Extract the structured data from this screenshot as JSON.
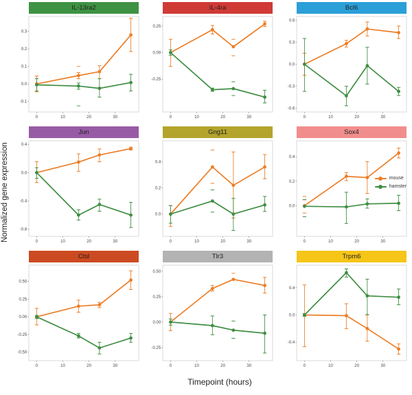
{
  "figure": {
    "ylabel": "Normalized gene expression",
    "xlabel": "Timepoint (hours)"
  },
  "legend": {
    "entries": [
      {
        "label": "mouse",
        "color": "#EC7E27"
      },
      {
        "label": "hamster",
        "color": "#3F8E43"
      }
    ]
  },
  "chart_data": {
    "type": "line",
    "x": [
      0,
      16,
      24,
      36
    ],
    "xticks": [
      0,
      10,
      20,
      30
    ],
    "xlim": [
      -3,
      39
    ],
    "error_bars": true,
    "panels": [
      {
        "title": "IL-13ra2",
        "strip_color": "#3E9243",
        "ylim": [
          -0.16,
          0.385
        ],
        "yticks": [
          {
            "v": 0.3,
            "t": "0.3"
          },
          {
            "v": 0.2,
            "t": "0.2"
          },
          {
            "v": 0.1,
            "t": "0.1"
          },
          {
            "v": 0.0,
            "t": "0.0"
          },
          {
            "v": -0.1,
            "t": "-0.1"
          }
        ],
        "series": [
          {
            "name": "mouse",
            "color": "#EC7E27",
            "points": [
              {
                "x": 0,
                "y": 0.0,
                "lo": -0.045,
                "hi": 0.045
              },
              {
                "x": 16,
                "y": 0.048,
                "lo": 0.03,
                "hi": 0.065
              },
              {
                "x": 24,
                "y": 0.07,
                "lo": 0.03,
                "hi": 0.105
              },
              {
                "x": 36,
                "y": 0.28,
                "lo": 0.185,
                "hi": 0.375
              }
            ],
            "dashes": [
              {
                "x": 16,
                "y": 0.1
              }
            ]
          },
          {
            "name": "hamster",
            "color": "#3F8E43",
            "points": [
              {
                "x": 0,
                "y": -0.005,
                "lo": -0.04,
                "hi": 0.03
              },
              {
                "x": 16,
                "y": -0.012,
                "lo": -0.03,
                "hi": 0.005
              },
              {
                "x": 24,
                "y": -0.025,
                "lo": -0.075,
                "hi": 0.03
              },
              {
                "x": 36,
                "y": 0.008,
                "lo": -0.04,
                "hi": 0.055
              }
            ],
            "dashes": [
              {
                "x": 16,
                "y": -0.125
              }
            ]
          }
        ]
      },
      {
        "title": "IL-4ra",
        "strip_color": "#D03A35",
        "ylim": [
          -0.56,
          0.34
        ],
        "yticks": [
          {
            "v": 0.25,
            "t": "0.25"
          },
          {
            "v": 0.0,
            "t": "0.00"
          },
          {
            "v": -0.25,
            "t": "-0.25"
          }
        ],
        "series": [
          {
            "name": "mouse",
            "color": "#EC7E27",
            "points": [
              {
                "x": 0,
                "y": 0.0,
                "lo": -0.13,
                "hi": 0.125
              },
              {
                "x": 16,
                "y": 0.215,
                "lo": 0.175,
                "hi": 0.255
              },
              {
                "x": 24,
                "y": 0.055,
                "lo": -0.03,
                "hi": 0.125,
                "s": "c"
              },
              {
                "x": 36,
                "y": 0.27,
                "lo": 0.245,
                "hi": 0.295
              }
            ],
            "dashes": []
          },
          {
            "name": "hamster",
            "color": "#3F8E43",
            "points": [
              {
                "x": 0,
                "y": 0.0,
                "lo": -0.025,
                "hi": 0.025
              },
              {
                "x": 16,
                "y": -0.35,
                "lo": -0.365,
                "hi": -0.335
              },
              {
                "x": 24,
                "y": -0.34,
                "lo": -0.405,
                "hi": -0.275,
                "s": "c"
              },
              {
                "x": 36,
                "y": -0.42,
                "lo": -0.475,
                "hi": -0.355
              }
            ],
            "dashes": []
          }
        ]
      },
      {
        "title": "Bcl6",
        "strip_color": "#2B9FD8",
        "ylim": [
          -0.65,
          0.65
        ],
        "yticks": [
          {
            "v": 0.6,
            "t": "0.6"
          },
          {
            "v": 0.3,
            "t": "0.3"
          },
          {
            "v": 0.0,
            "t": "0.0"
          },
          {
            "v": -0.3,
            "t": "-0.3"
          },
          {
            "v": -0.6,
            "t": "-0.6"
          }
        ],
        "series": [
          {
            "name": "mouse",
            "color": "#EC7E27",
            "points": [
              {
                "x": 0,
                "y": 0.0,
                "lo": -0.15,
                "hi": 0.15
              },
              {
                "x": 16,
                "y": 0.28,
                "lo": 0.235,
                "hi": 0.325
              },
              {
                "x": 24,
                "y": 0.48,
                "lo": 0.385,
                "hi": 0.575
              },
              {
                "x": 36,
                "y": 0.43,
                "lo": 0.35,
                "hi": 0.52
              }
            ],
            "dashes": []
          },
          {
            "name": "hamster",
            "color": "#3F8E43",
            "points": [
              {
                "x": 0,
                "y": 0.0,
                "lo": -0.37,
                "hi": 0.35
              },
              {
                "x": 16,
                "y": -0.43,
                "lo": -0.565,
                "hi": -0.3
              },
              {
                "x": 24,
                "y": -0.02,
                "lo": -0.27,
                "hi": 0.23
              },
              {
                "x": 36,
                "y": -0.37,
                "lo": -0.425,
                "hi": -0.315
              }
            ],
            "dashes": []
          }
        ]
      },
      {
        "title": "Jun",
        "strip_color": "#975BA5",
        "ylim": [
          -0.9,
          0.45
        ],
        "yticks": [
          {
            "v": 0.4,
            "t": "0.4"
          },
          {
            "v": 0.0,
            "t": "0.0"
          },
          {
            "v": -0.4,
            "t": "-0.4"
          },
          {
            "v": -0.8,
            "t": "-0.8"
          }
        ],
        "series": [
          {
            "name": "mouse",
            "color": "#EC7E27",
            "points": [
              {
                "x": 0,
                "y": 0.0,
                "lo": -0.14,
                "hi": 0.155
              },
              {
                "x": 16,
                "y": 0.15,
                "lo": 0.02,
                "hi": 0.265
              },
              {
                "x": 24,
                "y": 0.25,
                "lo": 0.155,
                "hi": 0.335
              },
              {
                "x": 36,
                "y": 0.34,
                "lo": 0.32,
                "hi": 0.36
              }
            ],
            "dashes": []
          },
          {
            "name": "hamster",
            "color": "#3F8E43",
            "points": [
              {
                "x": 0,
                "y": 0.0,
                "lo": -0.08,
                "hi": 0.07
              },
              {
                "x": 16,
                "y": -0.6,
                "lo": -0.67,
                "hi": -0.525
              },
              {
                "x": 24,
                "y": -0.45,
                "lo": -0.545,
                "hi": -0.375
              },
              {
                "x": 36,
                "y": -0.6,
                "lo": -0.775,
                "hi": -0.42
              }
            ],
            "dashes": []
          }
        ]
      },
      {
        "title": "Gng11",
        "strip_color": "#B3A42C",
        "ylim": [
          -0.17,
          0.56
        ],
        "yticks": [
          {
            "v": 0.4,
            "t": "0.4"
          },
          {
            "v": 0.2,
            "t": "0.2"
          },
          {
            "v": 0.0,
            "t": "0.0"
          }
        ],
        "series": [
          {
            "name": "mouse",
            "color": "#EC7E27",
            "points": [
              {
                "x": 0,
                "y": 0.0,
                "lo": -0.095,
                "hi": 0.065
              },
              {
                "x": 16,
                "y": 0.36,
                "lo": 0.235,
                "hi": 0.49,
                "s": "c"
              },
              {
                "x": 24,
                "y": 0.22,
                "lo": -0.03,
                "hi": 0.475
              },
              {
                "x": 36,
                "y": 0.36,
                "lo": 0.27,
                "hi": 0.455
              }
            ],
            "dashes": []
          },
          {
            "name": "hamster",
            "color": "#3F8E43",
            "points": [
              {
                "x": 0,
                "y": 0.0,
                "lo": -0.07,
                "hi": 0.065
              },
              {
                "x": 16,
                "y": 0.1,
                "lo": 0.015,
                "hi": 0.185,
                "s": "c"
              },
              {
                "x": 24,
                "y": 0.0,
                "lo": -0.125,
                "hi": 0.12
              },
              {
                "x": 36,
                "y": 0.07,
                "lo": 0.02,
                "hi": 0.135
              }
            ],
            "dashes": []
          }
        ]
      },
      {
        "title": "Sox4",
        "strip_color": "#F28D8D",
        "ylim": [
          -0.25,
          0.53
        ],
        "yticks": [
          {
            "v": 0.4,
            "t": "0.4"
          },
          {
            "v": 0.2,
            "t": "0.2"
          },
          {
            "v": 0.0,
            "t": "0.0"
          }
        ],
        "series": [
          {
            "name": "mouse",
            "color": "#EC7E27",
            "points": [
              {
                "x": 0,
                "y": 0.0,
                "lo": -0.06,
                "hi": 0.075,
                "s": "c"
              },
              {
                "x": 16,
                "y": 0.24,
                "lo": 0.205,
                "hi": 0.27
              },
              {
                "x": 24,
                "y": 0.23,
                "lo": 0.1,
                "hi": 0.36
              },
              {
                "x": 36,
                "y": 0.43,
                "lo": 0.39,
                "hi": 0.47
              }
            ],
            "dashes": [
              {
                "x": 0,
                "y": 0.048
              }
            ]
          },
          {
            "name": "hamster",
            "color": "#3F8E43",
            "points": [
              {
                "x": 0,
                "y": -0.005,
                "lo": -0.09,
                "hi": 0.05,
                "s": "c"
              },
              {
                "x": 16,
                "y": -0.01,
                "lo": -0.145,
                "hi": 0.11
              },
              {
                "x": 24,
                "y": 0.015,
                "lo": -0.02,
                "hi": 0.055
              },
              {
                "x": 36,
                "y": 0.02,
                "lo": -0.04,
                "hi": 0.085
              }
            ],
            "dashes": []
          }
        ]
      },
      {
        "title": "Ctsl",
        "strip_color": "#CC4A21",
        "ylim": [
          -0.62,
          0.73
        ],
        "yticks": [
          {
            "v": 0.5,
            "t": "0.50"
          },
          {
            "v": 0.25,
            "t": "0.25"
          },
          {
            "v": 0.0,
            "t": "0.00"
          },
          {
            "v": -0.25,
            "t": "-0.25"
          },
          {
            "v": -0.5,
            "t": "-0.50"
          }
        ],
        "series": [
          {
            "name": "mouse",
            "color": "#EC7E27",
            "points": [
              {
                "x": 0,
                "y": 0.0,
                "lo": -0.115,
                "hi": 0.12
              },
              {
                "x": 16,
                "y": 0.15,
                "lo": 0.065,
                "hi": 0.235
              },
              {
                "x": 24,
                "y": 0.17,
                "lo": 0.13,
                "hi": 0.205
              },
              {
                "x": 36,
                "y": 0.52,
                "lo": 0.385,
                "hi": 0.65
              }
            ],
            "dashes": []
          },
          {
            "name": "hamster",
            "color": "#3F8E43",
            "points": [
              {
                "x": 0,
                "y": 0.0,
                "lo": -0.025,
                "hi": 0.02
              },
              {
                "x": 16,
                "y": -0.27,
                "lo": -0.3,
                "hi": -0.235
              },
              {
                "x": 24,
                "y": -0.44,
                "lo": -0.525,
                "hi": -0.36
              },
              {
                "x": 36,
                "y": -0.3,
                "lo": -0.36,
                "hi": -0.235
              }
            ],
            "dashes": []
          }
        ]
      },
      {
        "title": "Tlr3",
        "strip_color": "#B3B3B3",
        "ylim": [
          -0.38,
          0.56
        ],
        "yticks": [
          {
            "v": 0.5,
            "t": "0.50"
          },
          {
            "v": 0.25,
            "t": "0.25"
          },
          {
            "v": 0.0,
            "t": "0.00"
          },
          {
            "v": -0.25,
            "t": "-0.25"
          }
        ],
        "series": [
          {
            "name": "mouse",
            "color": "#EC7E27",
            "points": [
              {
                "x": 0,
                "y": 0.0,
                "lo": -0.085,
                "hi": 0.085
              },
              {
                "x": 16,
                "y": 0.33,
                "lo": 0.305,
                "hi": 0.36
              },
              {
                "x": 24,
                "y": 0.42
              },
              {
                "x": 36,
                "y": 0.36,
                "lo": 0.285,
                "hi": 0.44
              }
            ],
            "dashes": [
              {
                "x": 24,
                "y": 0.48
              }
            ]
          },
          {
            "name": "hamster",
            "color": "#3F8E43",
            "points": [
              {
                "x": 0,
                "y": 0.0,
                "lo": -0.03,
                "hi": 0.03
              },
              {
                "x": 16,
                "y": -0.035,
                "lo": -0.125,
                "hi": 0.06
              },
              {
                "x": 24,
                "y": -0.08,
                "lo": -0.16,
                "hi": 0.01,
                "s": "c"
              },
              {
                "x": 36,
                "y": -0.11,
                "lo": -0.305,
                "hi": 0.07
              }
            ],
            "dashes": []
          }
        ]
      },
      {
        "title": "Trpm6",
        "strip_color": "#F5C518",
        "ylim": [
          -0.67,
          0.73
        ],
        "yticks": [
          {
            "v": 0.4,
            "t": "0.4"
          },
          {
            "v": 0.0,
            "t": "0.0"
          },
          {
            "v": -0.4,
            "t": "-0.4"
          }
        ],
        "series": [
          {
            "name": "mouse",
            "color": "#EC7E27",
            "points": [
              {
                "x": 0,
                "y": 0.0,
                "lo": -0.465,
                "hi": 0.44
              },
              {
                "x": 16,
                "y": -0.01,
                "lo": -0.2,
                "hi": 0.165
              },
              {
                "x": 24,
                "y": -0.2,
                "lo": -0.385,
                "hi": 0.0
              },
              {
                "x": 36,
                "y": -0.5,
                "lo": -0.575,
                "hi": -0.425
              }
            ],
            "dashes": []
          },
          {
            "name": "hamster",
            "color": "#3F8E43",
            "points": [
              {
                "x": 0,
                "y": 0.0,
                "lo": -0.02,
                "hi": 0.02
              },
              {
                "x": 16,
                "y": 0.62,
                "lo": 0.555,
                "hi": 0.675
              },
              {
                "x": 24,
                "y": 0.28,
                "lo": 0.005,
                "hi": 0.525
              },
              {
                "x": 36,
                "y": 0.26,
                "lo": 0.15,
                "hi": 0.38
              }
            ],
            "dashes": []
          }
        ]
      }
    ]
  }
}
